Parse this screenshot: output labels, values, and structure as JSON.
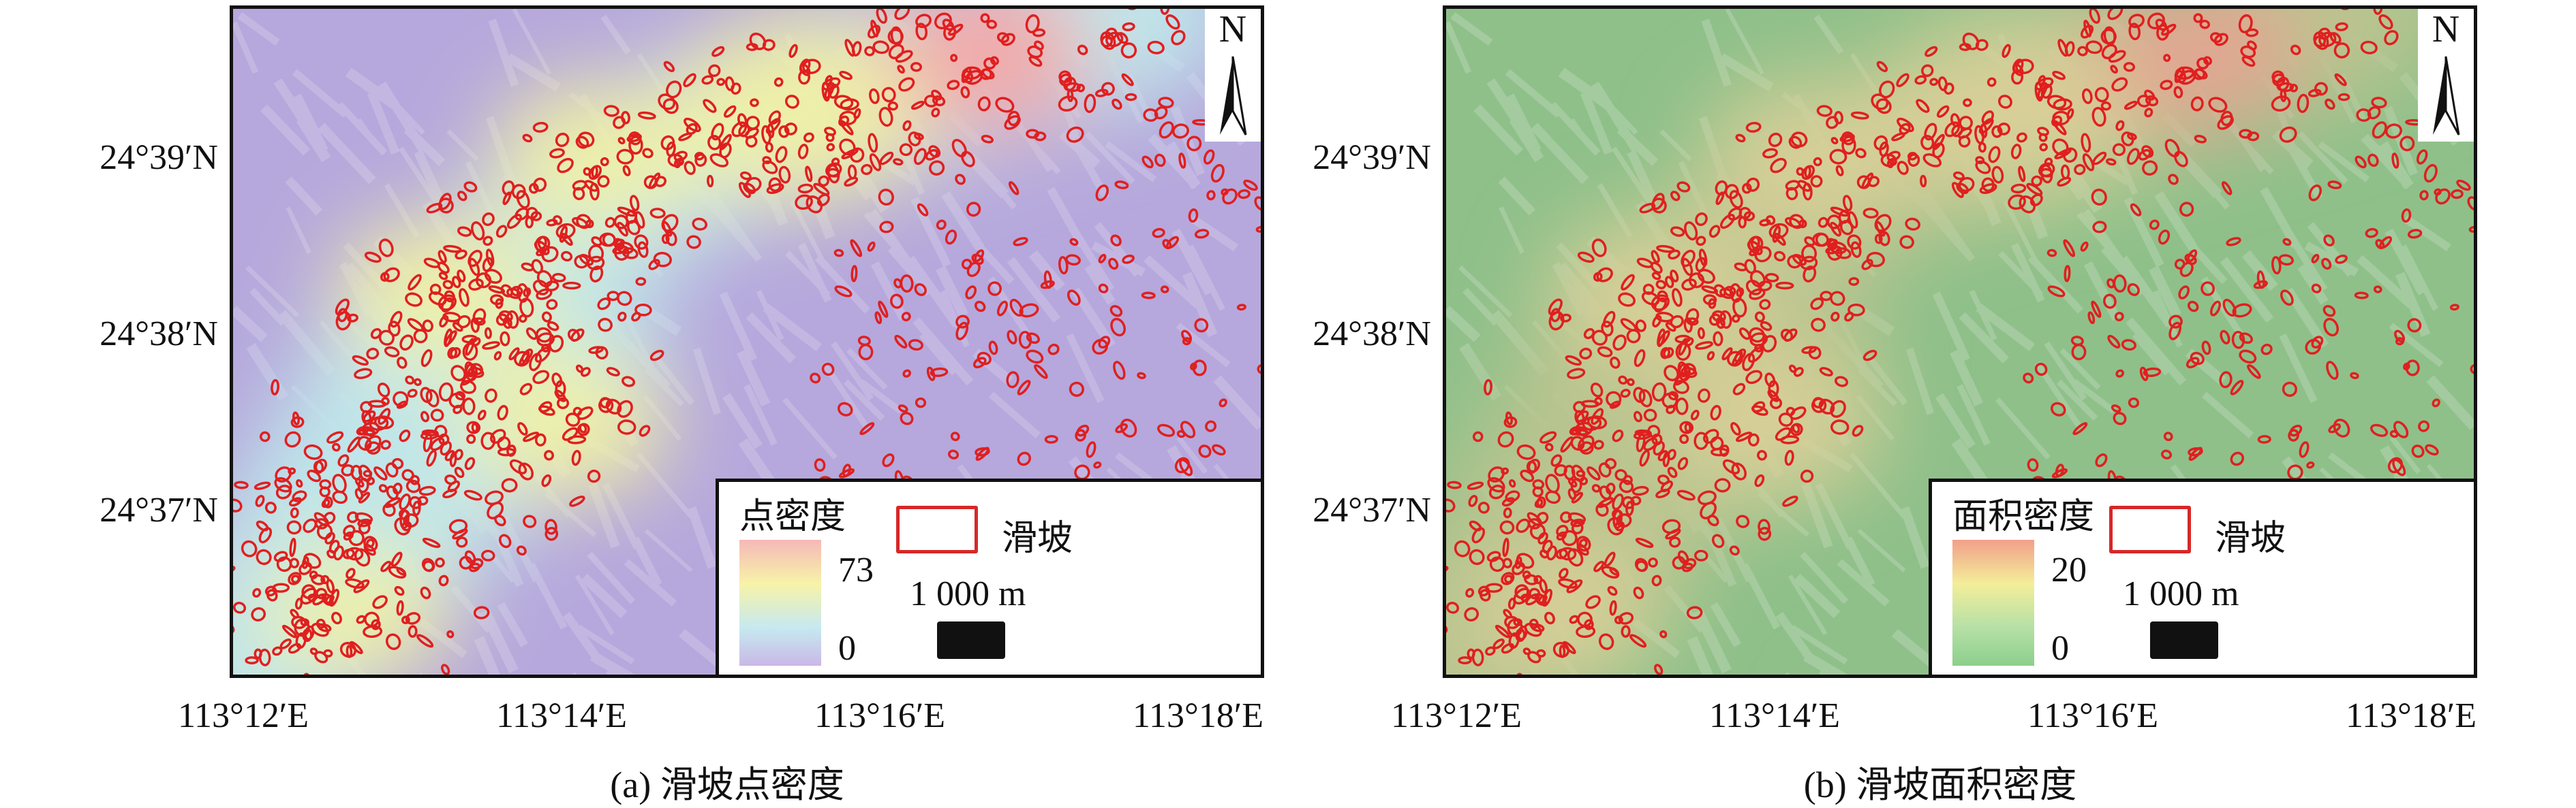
{
  "panels": [
    {
      "caption": "(a) 滑坡点密度",
      "legend": {
        "title": "点密度",
        "max": "73",
        "min": "0",
        "landslide_label": "滑坡",
        "scale_label": "1 000 m",
        "ramp_colors": [
          "#f6b8b8",
          "#f7f3a8",
          "#c6e9f0",
          "#c9b8e6"
        ]
      },
      "background_color": "#b6a8dc",
      "north_label": "N"
    },
    {
      "caption": "(b) 滑坡面积密度",
      "legend": {
        "title": "面积密度",
        "max": "20",
        "min": "0",
        "landslide_label": "滑坡",
        "scale_label": "1 000 m",
        "ramp_colors": [
          "#f2a08a",
          "#f3ee9a",
          "#b6e0a6",
          "#8ccf8c"
        ]
      },
      "background_color": "#8fc08a",
      "north_label": "N"
    }
  ],
  "lat_labels": [
    "24°39′N",
    "24°38′N",
    "24°37′N"
  ],
  "lon_labels": [
    "113°12′E",
    "113°14′E",
    "113°16′E",
    "113°18′E"
  ],
  "landslide_color": "#e01f1f"
}
